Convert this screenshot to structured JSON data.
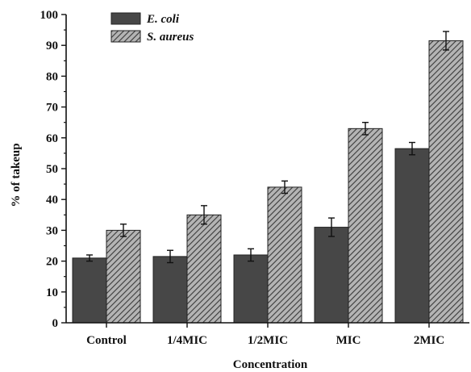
{
  "chart_data": {
    "type": "bar",
    "categories": [
      "Control",
      "1/4MIC",
      "1/2MIC",
      "MIC",
      "2MIC"
    ],
    "series": [
      {
        "name": "E. coli",
        "values": [
          21,
          21.5,
          22,
          31,
          56.5
        ],
        "errors": [
          1,
          2,
          2,
          3,
          2
        ],
        "color": "#474747",
        "pattern": "solid"
      },
      {
        "name": "S. aureus",
        "values": [
          30,
          35,
          44,
          63,
          91.5
        ],
        "errors": [
          2,
          3,
          2,
          2,
          3
        ],
        "color": "#8a8a8a",
        "pattern": "hatched"
      }
    ],
    "xlabel": "Concentration",
    "ylabel": "% of takeup",
    "ylim": [
      0,
      100
    ],
    "yticks": [
      "0",
      "10",
      "20",
      "30",
      "40",
      "50",
      "60",
      "70",
      "80",
      "90",
      "100"
    ],
    "grid": false,
    "legend_position": "top-left"
  }
}
